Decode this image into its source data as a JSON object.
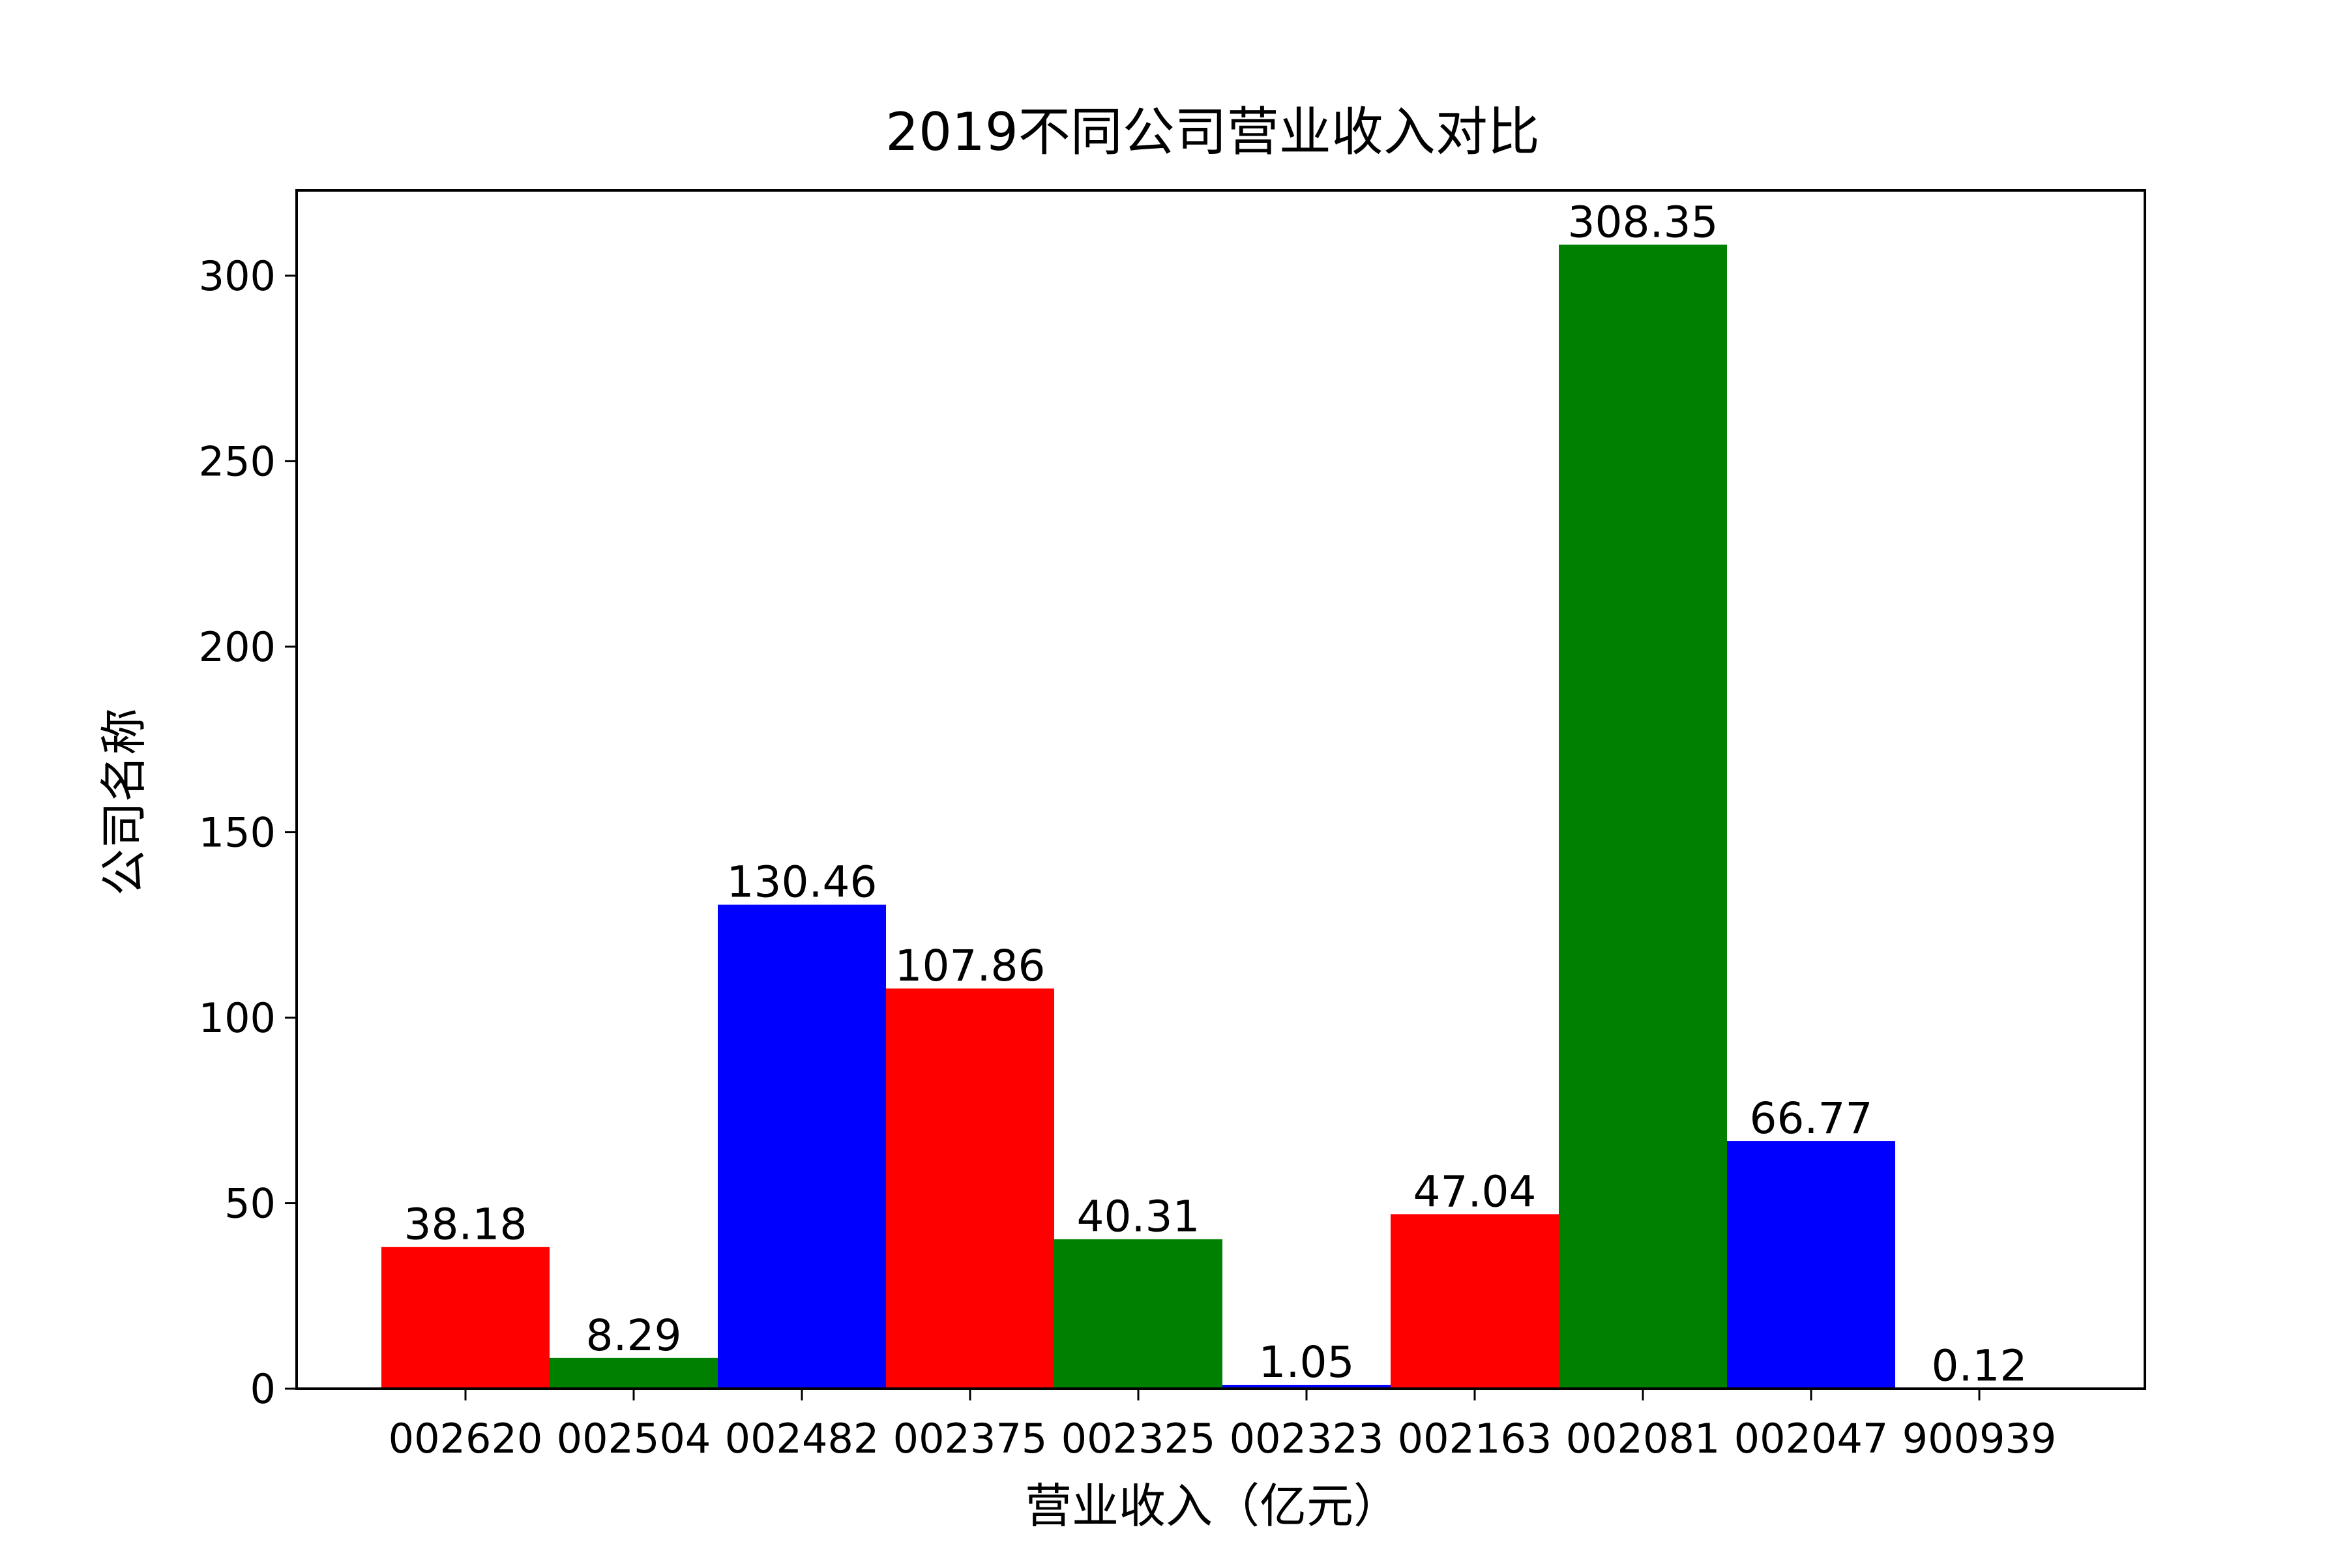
{
  "chart_data": {
    "type": "bar",
    "title": "2019不同公司营业收入对比",
    "xlabel": "营业收入（亿元）",
    "ylabel": "公司名称",
    "categories": [
      "002620",
      "002504",
      "002482",
      "002375",
      "002325",
      "002323",
      "002163",
      "002081",
      "002047",
      "900939"
    ],
    "values": [
      38.18,
      8.29,
      130.46,
      107.86,
      40.31,
      1.05,
      47.04,
      308.35,
      66.77,
      0.12
    ],
    "value_labels": [
      "38.18",
      "8.29",
      "130.46",
      "107.86",
      "40.31",
      "1.05",
      "47.04",
      "308.35",
      "66.77",
      "0.12"
    ],
    "bar_colors": [
      "#ff0000",
      "#008000",
      "#0000ff",
      "#ff0000",
      "#008000",
      "#0000ff",
      "#ff0000",
      "#008000",
      "#0000ff",
      "#ff0000"
    ],
    "ylim": [
      0,
      323
    ],
    "yticks": [
      0,
      50,
      100,
      150,
      200,
      250,
      300
    ],
    "ytick_labels": [
      "0",
      "50",
      "100",
      "150",
      "200",
      "250",
      "300"
    ],
    "grid": false,
    "legend": "none"
  }
}
